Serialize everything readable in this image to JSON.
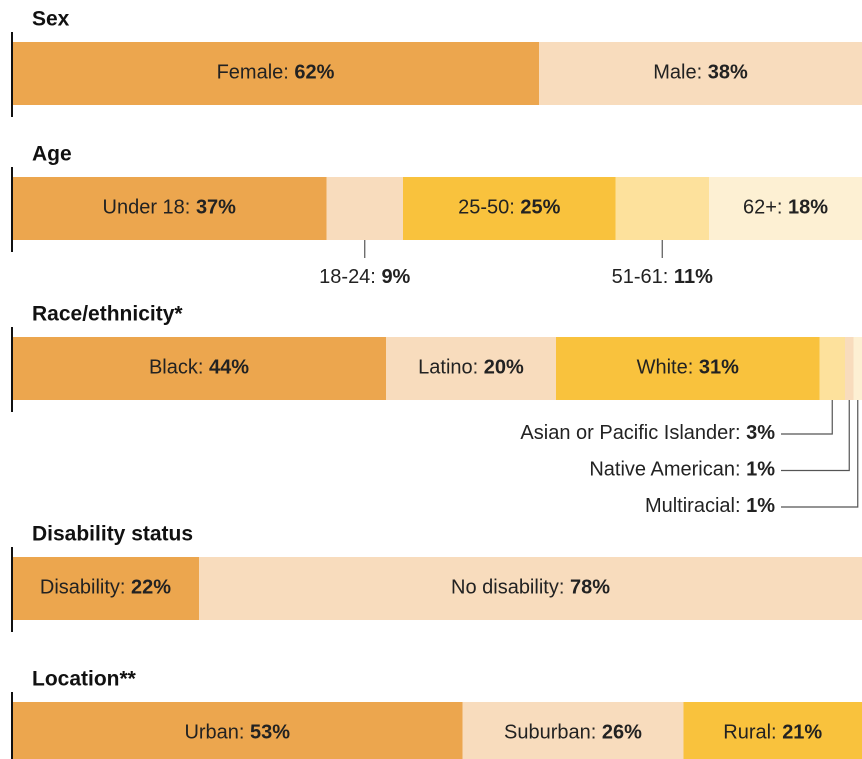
{
  "chart_data": [
    {
      "type": "stacked-bar",
      "title": "Sex",
      "categories": [
        "Female:",
        "Male:"
      ],
      "values": [
        62,
        38
      ],
      "value_labels": [
        "62%",
        "38%"
      ],
      "colors": [
        "#eca64e",
        "#f8dcbd"
      ],
      "xlim": [
        0,
        100
      ]
    },
    {
      "type": "stacked-bar",
      "title": "Age",
      "categories": [
        "Under 18:",
        "18-24:",
        "25-50:",
        "51-61:",
        "62+:"
      ],
      "values": [
        37,
        9,
        25,
        11,
        18
      ],
      "value_labels": [
        "37%",
        "9%",
        "25%",
        "11%",
        "18%"
      ],
      "colors": [
        "#eca64e",
        "#f8dcbd",
        "#f9c23d",
        "#fde19c",
        "#fdf0d3"
      ],
      "xlim": [
        0,
        100
      ]
    },
    {
      "type": "stacked-bar",
      "title": "Race/ethnicity*",
      "categories": [
        "Black:",
        "Latino:",
        "White:",
        "Asian or Pacific Islander:",
        "Native American:",
        "Multiracial:"
      ],
      "values": [
        44,
        20,
        31,
        3,
        1,
        1
      ],
      "value_labels": [
        "44%",
        "20%",
        "31%",
        "3%",
        "1%",
        "1%"
      ],
      "colors": [
        "#eca64e",
        "#f8dcbd",
        "#f9c23d",
        "#fde19c",
        "#f8dcbd",
        "#fdf0d3"
      ],
      "xlim": [
        0,
        100
      ]
    },
    {
      "type": "stacked-bar",
      "title": "Disability status",
      "categories": [
        "Disability:",
        "No disability:"
      ],
      "values": [
        22,
        78
      ],
      "value_labels": [
        "22%",
        "78%"
      ],
      "colors": [
        "#eca64e",
        "#f8dcbd"
      ],
      "xlim": [
        0,
        100
      ]
    },
    {
      "type": "stacked-bar",
      "title": "Location**",
      "categories": [
        "Urban:",
        "Suburban:",
        "Rural:"
      ],
      "values": [
        53,
        26,
        21
      ],
      "value_labels": [
        "53%",
        "26%",
        "21%"
      ],
      "colors": [
        "#eca64e",
        "#f8dcbd",
        "#f9c23d"
      ],
      "xlim": [
        0,
        100
      ]
    }
  ]
}
